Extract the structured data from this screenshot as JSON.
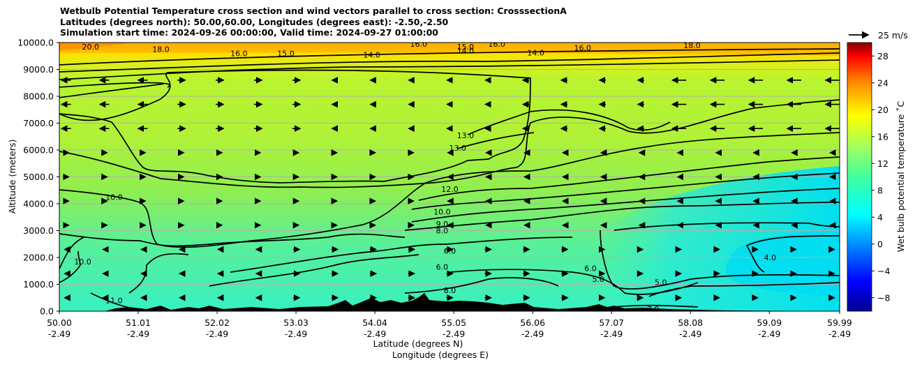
{
  "chart_data": {
    "type": "contour",
    "title_lines": [
      "Wetbulb Potential Temperature cross section and wind vectors parallel to cross section: CrosssectionA",
      "Latitudes (degrees north): 50.00,60.00, Longitudes (degrees east): -2.50,-2.50",
      "Simulation start time: 2024-09-26 00:00:00, Valid time: 2024-09-27 01:00:00"
    ],
    "ylabel": "Altitude (meters)",
    "xlabel_lat": "Latitude (degrees N)",
    "xlabel_lon": "Longitude (degrees E)",
    "ylim": [
      0,
      10000
    ],
    "yticks": [
      "0.0",
      "1000.0",
      "2000.0",
      "3000.0",
      "4000.0",
      "5000.0",
      "6000.0",
      "7000.0",
      "8000.0",
      "9000.0",
      "10000.0"
    ],
    "xticks_lat": [
      "50.00",
      "51.01",
      "52.02",
      "53.03",
      "54.04",
      "55.05",
      "56.06",
      "57.07",
      "58.08",
      "59.09",
      "59.99"
    ],
    "xticks_lon": [
      "-2.49",
      "-2.49",
      "-2.49",
      "-2.49",
      "-2.49",
      "-2.49",
      "-2.49",
      "-2.49",
      "-2.49",
      "-2.49",
      "-2.49"
    ],
    "xlim": [
      50.0,
      59.99
    ],
    "grid": "horizontal",
    "colorbar": {
      "label": "Wet bulb potential temperature ˚C",
      "ticks": [
        "−8",
        "−4",
        "0",
        "4",
        "8",
        "12",
        "16",
        "20",
        "24",
        "28"
      ],
      "min": -10,
      "max": 30,
      "colormap": "jet"
    },
    "quiver_key": "25 m/s",
    "contour_labels": [
      {
        "text": "20.0",
        "x": 50.4,
        "y": 9850
      },
      {
        "text": "18.0",
        "x": 51.3,
        "y": 9750
      },
      {
        "text": "16.0",
        "x": 52.3,
        "y": 9600
      },
      {
        "text": "15.0",
        "x": 52.9,
        "y": 9600
      },
      {
        "text": "14.0",
        "x": 54.0,
        "y": 9550
      },
      {
        "text": "16.0",
        "x": 54.6,
        "y": 9950
      },
      {
        "text": "15.0",
        "x": 55.2,
        "y": 9850
      },
      {
        "text": "14.0",
        "x": 55.2,
        "y": 9700
      },
      {
        "text": "16.0",
        "x": 55.6,
        "y": 9950
      },
      {
        "text": "14.0",
        "x": 56.1,
        "y": 9620
      },
      {
        "text": "16.0",
        "x": 56.7,
        "y": 9800
      },
      {
        "text": "18.0",
        "x": 58.1,
        "y": 9900
      },
      {
        "text": "13.0",
        "x": 55.2,
        "y": 6550
      },
      {
        "text": "13.0",
        "x": 55.1,
        "y": 6080
      },
      {
        "text": "12.0",
        "x": 55.0,
        "y": 4550
      },
      {
        "text": "10.0",
        "x": 54.9,
        "y": 3700
      },
      {
        "text": "9.0",
        "x": 54.9,
        "y": 3250
      },
      {
        "text": "8.0",
        "x": 54.9,
        "y": 3000
      },
      {
        "text": "6.0",
        "x": 55.0,
        "y": 2250
      },
      {
        "text": "6.0",
        "x": 54.9,
        "y": 1650
      },
      {
        "text": "8.0",
        "x": 55.0,
        "y": 780
      },
      {
        "text": "10.0",
        "x": 50.7,
        "y": 4250
      },
      {
        "text": "10.0",
        "x": 50.3,
        "y": 1850
      },
      {
        "text": "11.0",
        "x": 50.7,
        "y": 400
      },
      {
        "text": "6.0",
        "x": 56.8,
        "y": 1600
      },
      {
        "text": "5.0",
        "x": 56.9,
        "y": 1200
      },
      {
        "text": "5.0",
        "x": 57.7,
        "y": 1080
      },
      {
        "text": "4.0",
        "x": 59.1,
        "y": 2000
      },
      {
        "text": "7.0",
        "x": 57.6,
        "y": 80
      }
    ],
    "wind_vectors": "arrows parallel to cross section, strongest (pointing south) near 8000 m in the south and north, weak northward flow in the centre",
    "colors": {
      "warm": "#ffa000",
      "mid": "#a0f040",
      "cool": "#30f0c0",
      "cold": "#00e0f0",
      "terrain": "#000000"
    }
  }
}
